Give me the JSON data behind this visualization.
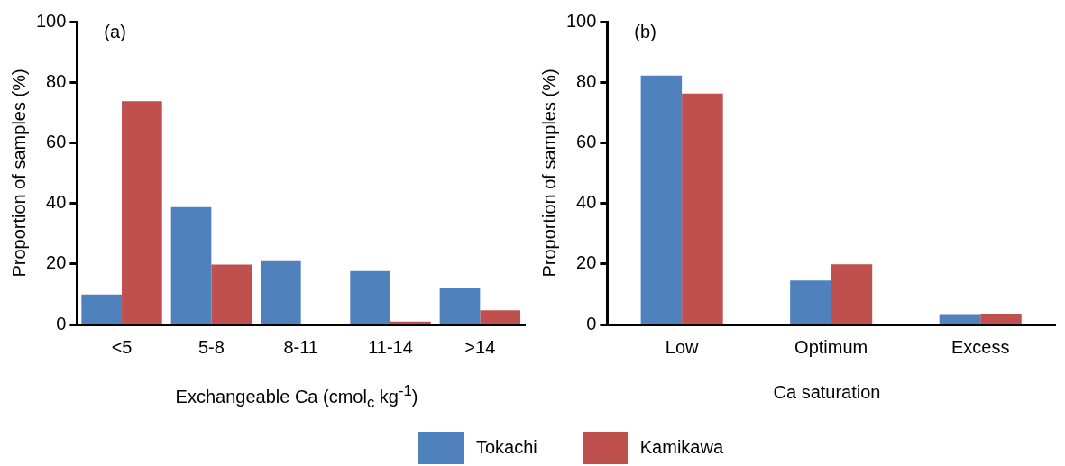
{
  "chart_data": [
    {
      "type": "bar",
      "categories": [
        "<5",
        "5-8",
        "8-11",
        "11-14",
        ">14"
      ],
      "xlabel": "Exchangeable Ca (cmol$_{c}$ kg$^{-1}$)",
      "ylabel": "Proportion of samples (%)",
      "ylim": [
        0,
        100
      ],
      "yticks": [
        0,
        20,
        40,
        60,
        80,
        100
      ],
      "grid": false,
      "legend": "bottom",
      "annotations": [
        "(a)"
      ],
      "series": [
        {
          "name": "Tokachi",
          "color": "#4f81bd",
          "values": [
            9.9,
            38.8,
            20.9,
            17.6,
            12.1
          ]
        },
        {
          "name": "Kamikawa",
          "color": "#c0504d",
          "values": [
            73.7,
            19.8,
            0,
            1.0,
            4.7
          ]
        }
      ]
    },
    {
      "type": "bar",
      "categories": [
        "Low",
        "Optimum",
        "Excess"
      ],
      "xlabel": "Ca saturation",
      "ylabel": "Proportion of samples (%)",
      "ylim": [
        0,
        100
      ],
      "yticks": [
        0,
        20,
        40,
        60,
        80,
        100
      ],
      "grid": false,
      "annotations": [
        "(b)"
      ],
      "series": [
        {
          "color": "#4f81bd",
          "values": [
            82.2,
            14.5,
            3.4
          ]
        },
        {
          "color": "#c0504d",
          "values": [
            76.3,
            19.9,
            3.6
          ]
        }
      ]
    }
  ]
}
